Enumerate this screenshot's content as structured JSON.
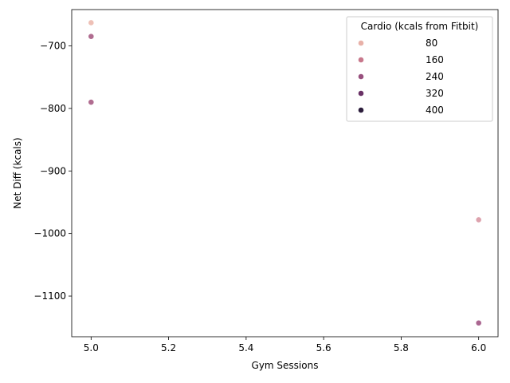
{
  "chart_data": {
    "type": "scatter",
    "title": "",
    "xlabel": "Gym Sessions",
    "ylabel": "Net Diff (kcals)",
    "xlim": [
      4.95,
      6.05
    ],
    "ylim": [
      -1165,
      -642
    ],
    "x_ticks": [
      5.0,
      5.2,
      5.4,
      5.6,
      5.8,
      6.0
    ],
    "x_tick_labels": [
      "5.0",
      "5.2",
      "5.4",
      "5.6",
      "5.8",
      "6.0"
    ],
    "y_ticks": [
      -1100,
      -1000,
      -900,
      -800,
      -700
    ],
    "y_tick_labels": [
      "−1100",
      "−1000",
      "−900",
      "−800",
      "−700"
    ],
    "grid": false,
    "hue_range": [
      0,
      400
    ],
    "legend": {
      "title": "Cardio (kcals from Fitbit)",
      "placement": "top-right",
      "entries": [
        {
          "label": "80",
          "value": 80,
          "color": "#e8b1a8"
        },
        {
          "label": "160",
          "value": 160,
          "color": "#c8788c"
        },
        {
          "label": "240",
          "value": 240,
          "color": "#98507e"
        },
        {
          "label": "320",
          "value": 320,
          "color": "#6a3266"
        },
        {
          "label": "400",
          "value": 400,
          "color": "#2c1d3c"
        }
      ]
    },
    "points": [
      {
        "x": 5.0,
        "y": -663,
        "hue": 50,
        "color": "#eec0b6"
      },
      {
        "x": 5.0,
        "y": -685,
        "hue": 200,
        "color": "#b06c90"
      },
      {
        "x": 5.0,
        "y": -790,
        "hue": 200,
        "color": "#b06c90"
      },
      {
        "x": 6.0,
        "y": -978,
        "hue": 110,
        "color": "#dda2ad"
      },
      {
        "x": 6.0,
        "y": -1143,
        "hue": 210,
        "color": "#aa6690"
      }
    ]
  }
}
